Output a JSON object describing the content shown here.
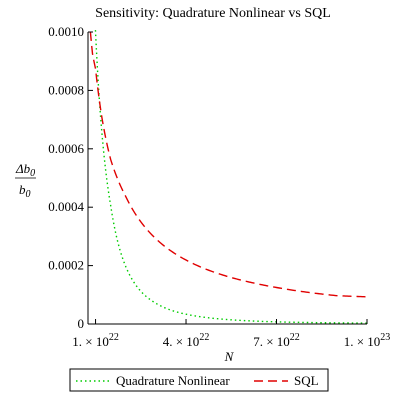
{
  "chart_data": {
    "type": "line",
    "title": "Sensitivity:  Quadrature Nonlinear vs SQL",
    "xlabel": "N",
    "ylabel": {
      "numerator": "Δb",
      "numerator_subscript": "0",
      "denominator": "b",
      "denominator_subscript": "0"
    },
    "xlim": [
      7.5e+21,
      1e+23
    ],
    "ylim": [
      0,
      0.001
    ],
    "x_ticks": [
      {
        "value": 1e+22,
        "label": "1. × 10",
        "exp": "22"
      },
      {
        "value": 4e+22,
        "label": "4. × 10",
        "exp": "22"
      },
      {
        "value": 7e+22,
        "label": "7. × 10",
        "exp": "22"
      },
      {
        "value": 1e+23,
        "label": "1. × 10",
        "exp": "23"
      }
    ],
    "y_ticks": [
      {
        "value": 0,
        "label": "0"
      },
      {
        "value": 0.0002,
        "label": "0.0002"
      },
      {
        "value": 0.0004,
        "label": "0.0004"
      },
      {
        "value": 0.0006,
        "label": "0.0006"
      },
      {
        "value": 0.0008,
        "label": "0.0008"
      },
      {
        "value": 0.001,
        "label": "0.0010"
      }
    ],
    "grid": false,
    "legend_position": "bottom",
    "series": [
      {
        "name": "Quadrature Nonlinear",
        "color": "#00cc00",
        "style": "dotted",
        "x": [
          8e+21,
          1e+22,
          1.5e+22,
          2e+22,
          3e+22,
          4e+22,
          5e+22,
          6e+22,
          7e+22,
          8e+22,
          9e+22,
          1e+23
        ],
        "y": [
          0.00153,
          0.001,
          0.000407,
          0.000197,
          7.09e-05,
          3.35e-05,
          1.85e-05,
          1.13e-05,
          7.4e-06,
          5.2e-06,
          3.8e-06,
          2.9e-06
        ]
      },
      {
        "name": "SQL",
        "color": "#e00000",
        "style": "dashed",
        "x": [
          8.3e+21,
          9e+21,
          1e+22,
          1.2e+22,
          1.5e+22,
          2e+22,
          3e+22,
          4e+22,
          5e+22,
          6e+22,
          7e+22,
          8e+22,
          9e+22,
          1e+23
        ],
        "y": [
          0.001,
          0.000925,
          0.000874,
          0.000714,
          0.000564,
          0.000437,
          0.000292,
          0.000219,
          0.000175,
          0.000146,
          0.000125,
          0.000109,
          9.7e-05,
          9.3e-05
        ]
      }
    ]
  }
}
